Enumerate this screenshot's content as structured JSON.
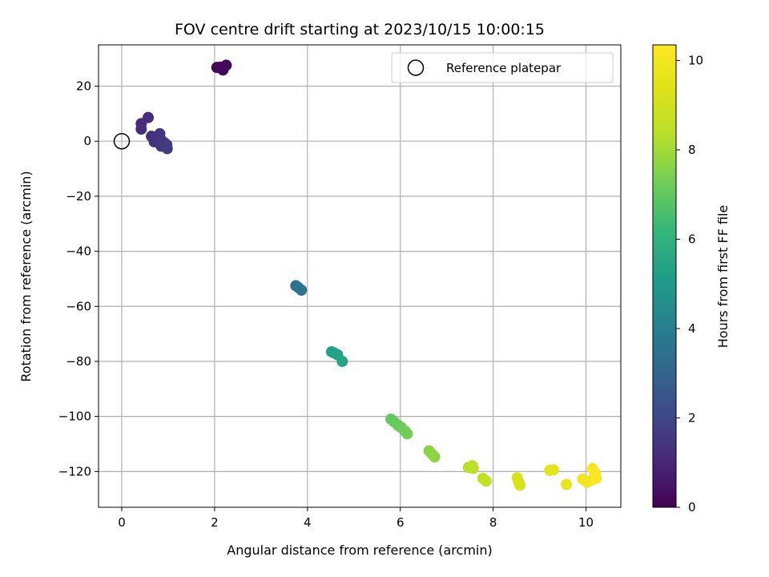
{
  "chart_data": {
    "type": "scatter",
    "title": "FOV centre drift starting at 2023/10/15 10:00:15",
    "xlabel": "Angular distance from reference (arcmin)",
    "ylabel": "Rotation from reference (arcmin)",
    "xlim": [
      -0.5,
      10.75
    ],
    "ylim": [
      -133,
      35
    ],
    "xticks": [
      0,
      2,
      4,
      6,
      8,
      10
    ],
    "yticks": [
      20,
      0,
      -20,
      -40,
      -60,
      -80,
      -100,
      -120
    ],
    "xtick_labels": [
      "0",
      "2",
      "4",
      "6",
      "8",
      "10"
    ],
    "ytick_labels": [
      "20",
      "0",
      "−20",
      "−40",
      "−60",
      "−80",
      "−100",
      "−120"
    ],
    "grid": true,
    "colormap": "viridis",
    "colorbar": {
      "label": "Hours from first FF file",
      "range": [
        0,
        10.35
      ],
      "ticks": [
        0,
        2,
        4,
        6,
        8,
        10
      ],
      "tick_labels": [
        "0",
        "2",
        "4",
        "6",
        "8",
        "10"
      ]
    },
    "legend": {
      "placement": "top-right",
      "entries": [
        {
          "label": "Reference platepar",
          "marker": "open-circle"
        }
      ]
    },
    "reference_point": {
      "x": 0,
      "y": 0
    },
    "points": [
      {
        "x": 2.05,
        "y": 26.8,
        "t": 0.05
      },
      {
        "x": 2.18,
        "y": 25.9,
        "t": 0.1
      },
      {
        "x": 2.25,
        "y": 27.6,
        "t": 0.15
      },
      {
        "x": 2.12,
        "y": 26.9,
        "t": 0.2
      },
      {
        "x": 0.42,
        "y": 6.4,
        "t": 1.1
      },
      {
        "x": 0.42,
        "y": 4.4,
        "t": 1.15
      },
      {
        "x": 0.57,
        "y": 8.6,
        "t": 1.2
      },
      {
        "x": 0.64,
        "y": 1.8,
        "t": 1.3
      },
      {
        "x": 0.7,
        "y": -0.2,
        "t": 1.35
      },
      {
        "x": 0.78,
        "y": 1.2,
        "t": 1.4
      },
      {
        "x": 0.82,
        "y": 2.7,
        "t": 1.45
      },
      {
        "x": 0.86,
        "y": 0.3,
        "t": 1.5
      },
      {
        "x": 0.85,
        "y": -1.8,
        "t": 1.55
      },
      {
        "x": 0.93,
        "y": -0.7,
        "t": 1.6
      },
      {
        "x": 0.97,
        "y": -1.3,
        "t": 1.65
      },
      {
        "x": 0.98,
        "y": -2.7,
        "t": 1.7
      },
      {
        "x": 3.75,
        "y": -52.5,
        "t": 3.5
      },
      {
        "x": 3.8,
        "y": -53.1,
        "t": 3.55
      },
      {
        "x": 3.87,
        "y": -54.1,
        "t": 3.6
      },
      {
        "x": 4.52,
        "y": -76.5,
        "t": 5.3
      },
      {
        "x": 4.58,
        "y": -77.0,
        "t": 5.35
      },
      {
        "x": 4.65,
        "y": -77.6,
        "t": 5.4
      },
      {
        "x": 4.75,
        "y": -80.0,
        "t": 5.45
      },
      {
        "x": 5.8,
        "y": -101.0,
        "t": 7.0
      },
      {
        "x": 5.87,
        "y": -102.0,
        "t": 7.05
      },
      {
        "x": 5.95,
        "y": -103.2,
        "t": 7.1
      },
      {
        "x": 6.02,
        "y": -104.0,
        "t": 7.15
      },
      {
        "x": 6.1,
        "y": -105.3,
        "t": 7.2
      },
      {
        "x": 6.15,
        "y": -106.3,
        "t": 7.25
      },
      {
        "x": 6.62,
        "y": -112.5,
        "t": 7.6
      },
      {
        "x": 6.68,
        "y": -113.6,
        "t": 7.65
      },
      {
        "x": 6.74,
        "y": -114.7,
        "t": 7.7
      },
      {
        "x": 7.47,
        "y": -118.5,
        "t": 8.35
      },
      {
        "x": 7.55,
        "y": -117.9,
        "t": 8.4
      },
      {
        "x": 7.57,
        "y": -118.9,
        "t": 8.45
      },
      {
        "x": 7.78,
        "y": -122.5,
        "t": 8.6
      },
      {
        "x": 7.85,
        "y": -123.5,
        "t": 8.65
      },
      {
        "x": 8.52,
        "y": -122.3,
        "t": 9.1
      },
      {
        "x": 8.55,
        "y": -123.8,
        "t": 9.15
      },
      {
        "x": 8.58,
        "y": -125.0,
        "t": 9.2
      },
      {
        "x": 9.22,
        "y": -119.6,
        "t": 9.55
      },
      {
        "x": 9.3,
        "y": -119.4,
        "t": 9.6
      },
      {
        "x": 9.58,
        "y": -124.7,
        "t": 9.7
      },
      {
        "x": 9.93,
        "y": -122.8,
        "t": 9.85
      },
      {
        "x": 10.02,
        "y": -123.9,
        "t": 9.95
      },
      {
        "x": 10.1,
        "y": -123.3,
        "t": 10.0
      },
      {
        "x": 10.14,
        "y": -119.0,
        "t": 10.1
      },
      {
        "x": 10.2,
        "y": -120.6,
        "t": 10.2
      },
      {
        "x": 10.22,
        "y": -122.5,
        "t": 10.3
      }
    ]
  }
}
